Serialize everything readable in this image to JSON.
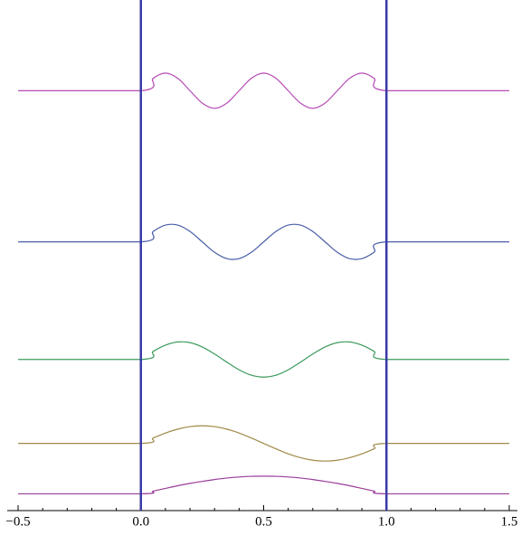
{
  "chart_data": {
    "type": "line",
    "x": [
      -0.5,
      0,
      0.05,
      0.1,
      0.15,
      0.2,
      0.25,
      0.3,
      0.35,
      0.4,
      0.45,
      0.5,
      0.55,
      0.6,
      0.65,
      0.7,
      0.75,
      0.8,
      0.85,
      0.9,
      0.95,
      1,
      1.5
    ],
    "series": [
      {
        "color": "#993d99",
        "values": [
          1,
          1,
          1.16,
          1.32,
          1.48,
          1.62,
          1.74,
          1.85,
          1.94,
          2.0,
          2.04,
          2.05,
          2.04,
          2.0,
          1.94,
          1.85,
          1.74,
          1.62,
          1.48,
          1.32,
          1.16,
          1,
          1
        ]
      },
      {
        "color": "#a08848",
        "values": [
          4,
          4,
          4.32,
          4.62,
          4.85,
          5,
          5.05,
          5,
          4.85,
          4.62,
          4.32,
          4,
          3.68,
          3.38,
          3.15,
          3,
          2.95,
          3,
          3.15,
          3.38,
          3.68,
          4,
          4
        ]
      },
      {
        "color": "#3c9a5a",
        "values": [
          9,
          9,
          9.48,
          9.85,
          10.04,
          10,
          9.74,
          9.32,
          8.84,
          8.38,
          8.06,
          7.95,
          8.06,
          8.38,
          8.84,
          9.32,
          9.74,
          10,
          10.04,
          9.85,
          9.48,
          9,
          9
        ]
      },
      {
        "color": "#4a5fa8",
        "values": [
          16,
          16,
          16.62,
          17,
          17,
          16.62,
          16,
          15.38,
          15,
          15,
          15.38,
          16,
          16.62,
          17,
          17,
          16.62,
          16,
          15.38,
          15,
          15,
          15.38,
          16,
          16
        ]
      },
      {
        "color": "#b64ab6",
        "values": [
          25,
          25,
          25.74,
          26.05,
          25.74,
          25,
          24.26,
          23.95,
          24.26,
          25,
          25.74,
          26.05,
          25.74,
          25,
          24.26,
          23.95,
          24.26,
          25,
          25.74,
          26.05,
          25.74,
          25,
          25
        ]
      }
    ],
    "walls": [
      0,
      1
    ],
    "wall_color": "#3a3aa8",
    "xlim": [
      -0.5,
      1.5
    ],
    "ylim": [
      0,
      30.4
    ],
    "xticks": [
      {
        "value": -0.5,
        "label": "−0.5"
      },
      {
        "value": 0,
        "label": "0.0"
      },
      {
        "value": 0.5,
        "label": "0.5"
      },
      {
        "value": 1,
        "label": "1.0"
      },
      {
        "value": 1.5,
        "label": "1.5"
      }
    ],
    "xminorticks": [
      -0.4,
      -0.3,
      -0.2,
      -0.1,
      0.1,
      0.2,
      0.3,
      0.4,
      0.6,
      0.7,
      0.8,
      0.9,
      1.1,
      1.2,
      1.3,
      1.4
    ]
  }
}
